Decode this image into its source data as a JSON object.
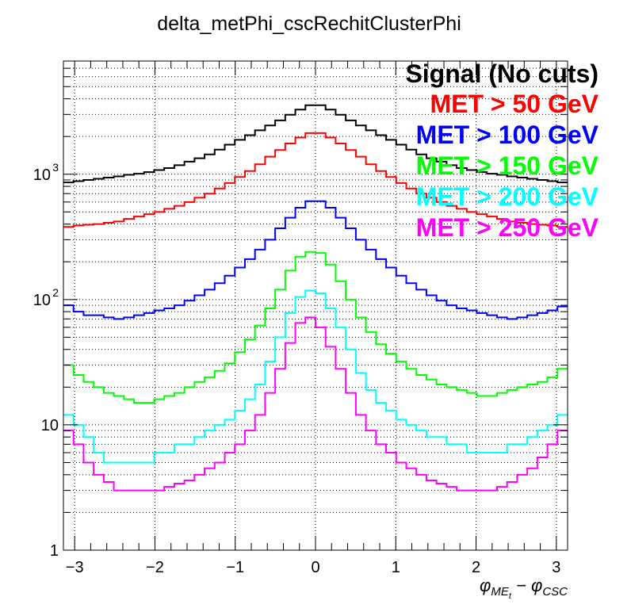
{
  "chart_data": {
    "type": "line",
    "title": "delta_metPhi_cscRechitClusterPhi",
    "xlabel_main": "φ",
    "xlabel_sub1": "ME",
    "xlabel_subsub": "t",
    "xlabel_minus": " − φ",
    "xlabel_sub2": "CSC",
    "ylabel": "",
    "xlim": [
      -3.14,
      3.14
    ],
    "ylim": [
      1,
      8000
    ],
    "log_y": true,
    "grid": true,
    "legend_position": "top-right",
    "legend_title": "Signal (No cuts)",
    "x_ticks": [
      {
        "value": -3,
        "label": "−3"
      },
      {
        "value": -2,
        "label": "−2"
      },
      {
        "value": -1,
        "label": "−1"
      },
      {
        "value": 0,
        "label": "0"
      },
      {
        "value": 1,
        "label": "1"
      },
      {
        "value": 2,
        "label": "2"
      },
      {
        "value": 3,
        "label": "3"
      }
    ],
    "y_ticks": [
      {
        "value": 1,
        "label": "1"
      },
      {
        "value": 10,
        "label": "10"
      },
      {
        "value": 100,
        "label": "10",
        "sup": "2"
      },
      {
        "value": 1000,
        "label": "10",
        "sup": "3"
      }
    ],
    "series": [
      {
        "name": "",
        "color": "#000000",
        "values": [
          860,
          880,
          900,
          920,
          940,
          960,
          990,
          1010,
          1040,
          1080,
          1120,
          1180,
          1260,
          1340,
          1440,
          1570,
          1720,
          1880,
          2050,
          2240,
          2450,
          2690,
          2980,
          3280,
          3550,
          3550,
          3280,
          2980,
          2690,
          2450,
          2240,
          2050,
          1880,
          1720,
          1570,
          1440,
          1340,
          1260,
          1180,
          1120,
          1080,
          1040,
          1010,
          990,
          960,
          940,
          920,
          900,
          880,
          860
        ]
      },
      {
        "name": "MET >  50 GeV",
        "color": "#ff0000",
        "values": [
          380,
          390,
          395,
          400,
          410,
          420,
          440,
          460,
          480,
          500,
          530,
          560,
          600,
          650,
          700,
          770,
          850,
          950,
          1060,
          1200,
          1380,
          1560,
          1760,
          1960,
          2130,
          2130,
          1960,
          1760,
          1560,
          1380,
          1200,
          1060,
          950,
          850,
          770,
          700,
          650,
          600,
          560,
          530,
          500,
          480,
          460,
          440,
          420,
          410,
          400,
          395,
          390,
          380
        ]
      },
      {
        "name": "MET > 100 GeV",
        "color": "#0000ff",
        "values": [
          90,
          80,
          75,
          75,
          72,
          70,
          72,
          75,
          78,
          82,
          85,
          90,
          98,
          108,
          120,
          135,
          155,
          180,
          210,
          250,
          300,
          370,
          450,
          540,
          610,
          610,
          540,
          450,
          370,
          300,
          250,
          210,
          180,
          155,
          135,
          120,
          108,
          98,
          90,
          85,
          82,
          78,
          75,
          72,
          70,
          72,
          75,
          78,
          82,
          88
        ]
      },
      {
        "name": "MET > 150 GeV",
        "color": "#00ff00",
        "values": [
          30,
          25,
          22,
          20,
          18,
          17,
          16,
          15,
          15,
          16,
          17,
          18,
          20,
          22,
          24,
          27,
          31,
          38,
          48,
          62,
          85,
          120,
          170,
          220,
          240,
          235,
          190,
          140,
          100,
          72,
          55,
          44,
          37,
          32,
          28,
          25,
          23,
          21,
          20,
          19,
          18,
          17,
          17,
          18,
          19,
          20,
          21,
          22,
          24,
          28
        ]
      },
      {
        "name": "MET > 200 GeV",
        "color": "#00ffff",
        "values": [
          12,
          10,
          8,
          6,
          5,
          5,
          5,
          5,
          5,
          6,
          6,
          7,
          7,
          8,
          9,
          10,
          11,
          13,
          16,
          21,
          32,
          50,
          78,
          105,
          118,
          112,
          85,
          60,
          40,
          26,
          19,
          15,
          13,
          11,
          10,
          9,
          8,
          8,
          7,
          7,
          6,
          6,
          6,
          6,
          7,
          7,
          8,
          9,
          10,
          12
        ]
      },
      {
        "name": "MET > 250 GeV",
        "color": "#ff00ff",
        "values": [
          9,
          7,
          5,
          4,
          3.5,
          3,
          3,
          3,
          3,
          3,
          3.2,
          3.4,
          3.6,
          4,
          4.5,
          5,
          6,
          7,
          9,
          12,
          18,
          28,
          45,
          65,
          72,
          60,
          42,
          28,
          18,
          12,
          9,
          7,
          6,
          5,
          4.5,
          4,
          3.6,
          3.4,
          3.2,
          3,
          3,
          3,
          3,
          3.2,
          3.5,
          4,
          4.5,
          5.5,
          7,
          9
        ]
      }
    ]
  }
}
